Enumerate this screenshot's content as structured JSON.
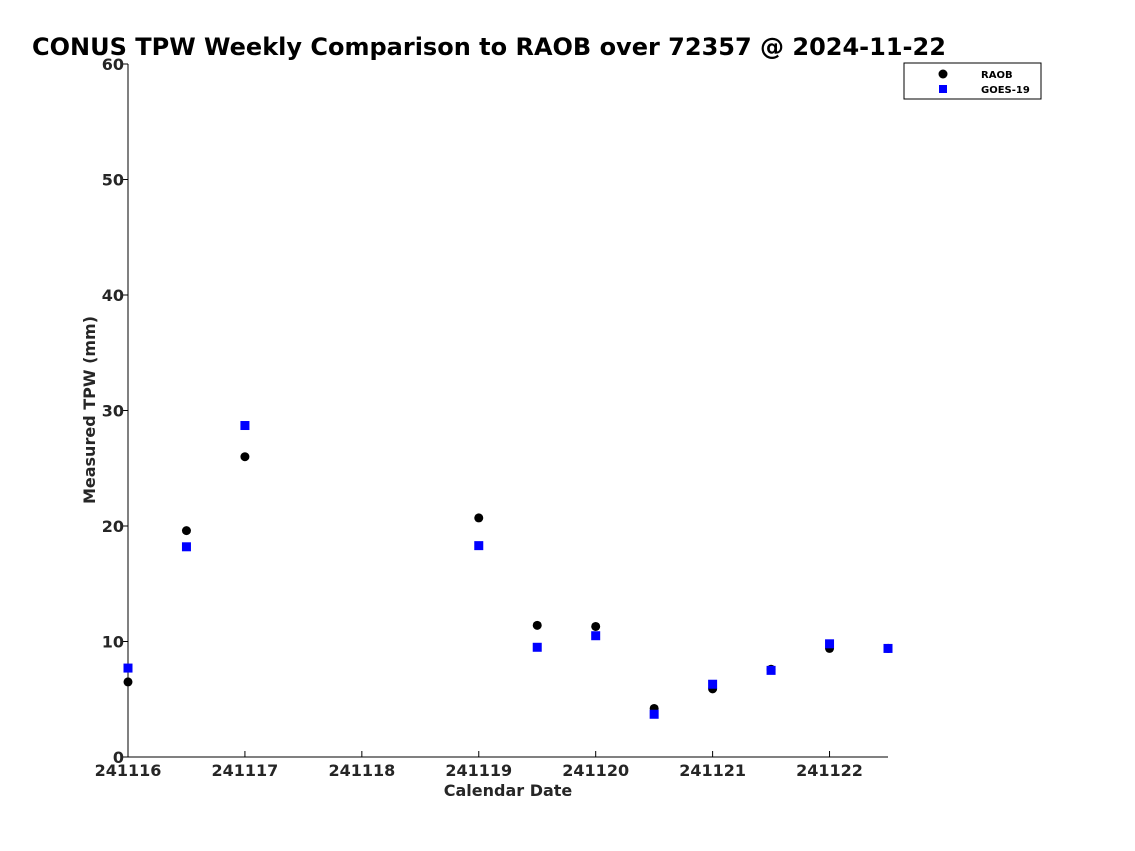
{
  "chart_data": {
    "type": "scatter",
    "title": "CONUS TPW Weekly Comparison to RAOB over 72357 @ 2024-11-22",
    "xlabel": "Calendar Date",
    "ylabel": "Measured TPW (mm)",
    "xlim": [
      0,
      6.5
    ],
    "ylim": [
      0,
      60
    ],
    "x_ticks": [
      {
        "value": 0,
        "label": "241116"
      },
      {
        "value": 1,
        "label": "241117"
      },
      {
        "value": 2,
        "label": "241118"
      },
      {
        "value": 3,
        "label": "241119"
      },
      {
        "value": 4,
        "label": "241120"
      },
      {
        "value": 5,
        "label": "241121"
      },
      {
        "value": 6,
        "label": "241122"
      }
    ],
    "y_ticks": [
      0,
      10,
      20,
      30,
      40,
      50,
      60
    ],
    "grid": false,
    "legend_position": "top-right",
    "series": [
      {
        "name": "RAOB",
        "marker": "circle",
        "color": "#000000",
        "x": [
          0,
          0.5,
          1,
          3,
          3.5,
          4,
          4.5,
          5,
          5.5,
          6,
          6.5
        ],
        "y": [
          6.5,
          19.6,
          26.0,
          20.7,
          11.4,
          11.3,
          4.2,
          5.9,
          7.6,
          9.4,
          9.4
        ]
      },
      {
        "name": "GOES-19",
        "marker": "square",
        "color": "#0000ff",
        "x": [
          0,
          0.5,
          1,
          3,
          3.5,
          4,
          4.5,
          5,
          5.5,
          6,
          6.5
        ],
        "y": [
          7.7,
          18.2,
          28.7,
          18.3,
          9.5,
          10.5,
          3.7,
          6.3,
          7.5,
          9.8,
          9.4
        ]
      }
    ]
  }
}
